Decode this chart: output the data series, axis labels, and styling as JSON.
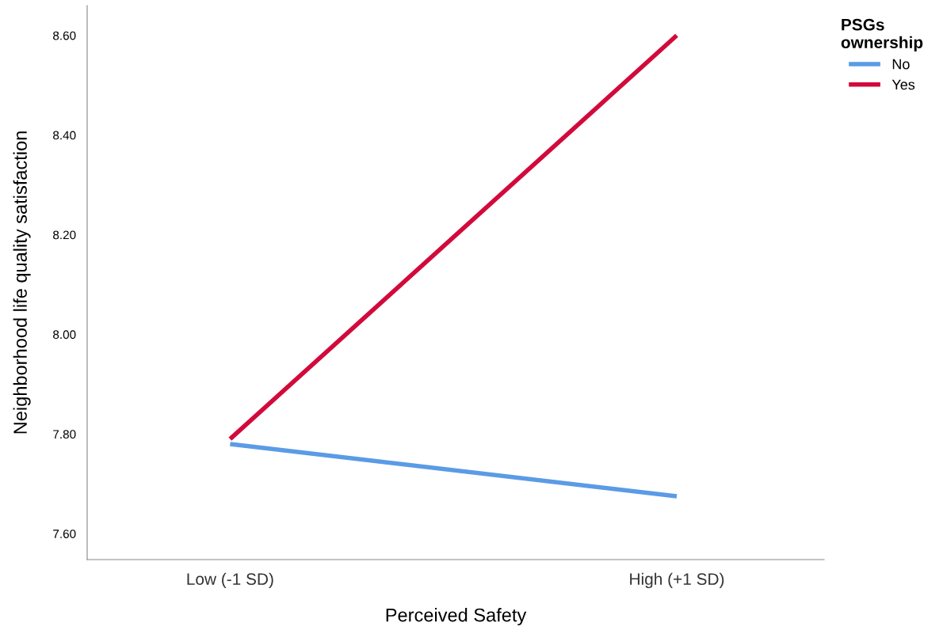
{
  "chart_data": {
    "type": "line",
    "xlabel": "Perceived Safety",
    "ylabel": "Neighborhood life quality satisfaction",
    "legend_title": "PSGs\nownership",
    "categories": [
      "Low (-1 SD)",
      "High (+1 SD)"
    ],
    "series": [
      {
        "name": "No",
        "color": "#5b9be6",
        "values": [
          7.78,
          7.675
        ]
      },
      {
        "name": "Yes",
        "color": "#d20a3c",
        "values": [
          7.79,
          8.6
        ]
      }
    ],
    "ylim": [
      7.548,
      8.66
    ],
    "yticks": [
      {
        "value": 7.6,
        "label": "7.60"
      },
      {
        "value": 7.8,
        "label": "7.80"
      },
      {
        "value": 8.0,
        "label": "8.00"
      },
      {
        "value": 8.2,
        "label": "8.20"
      },
      {
        "value": 8.4,
        "label": "8.40"
      },
      {
        "value": 8.6,
        "label": "8.60"
      }
    ],
    "grid": false,
    "legend": "top right",
    "marker": "none",
    "line_style": "solid"
  }
}
